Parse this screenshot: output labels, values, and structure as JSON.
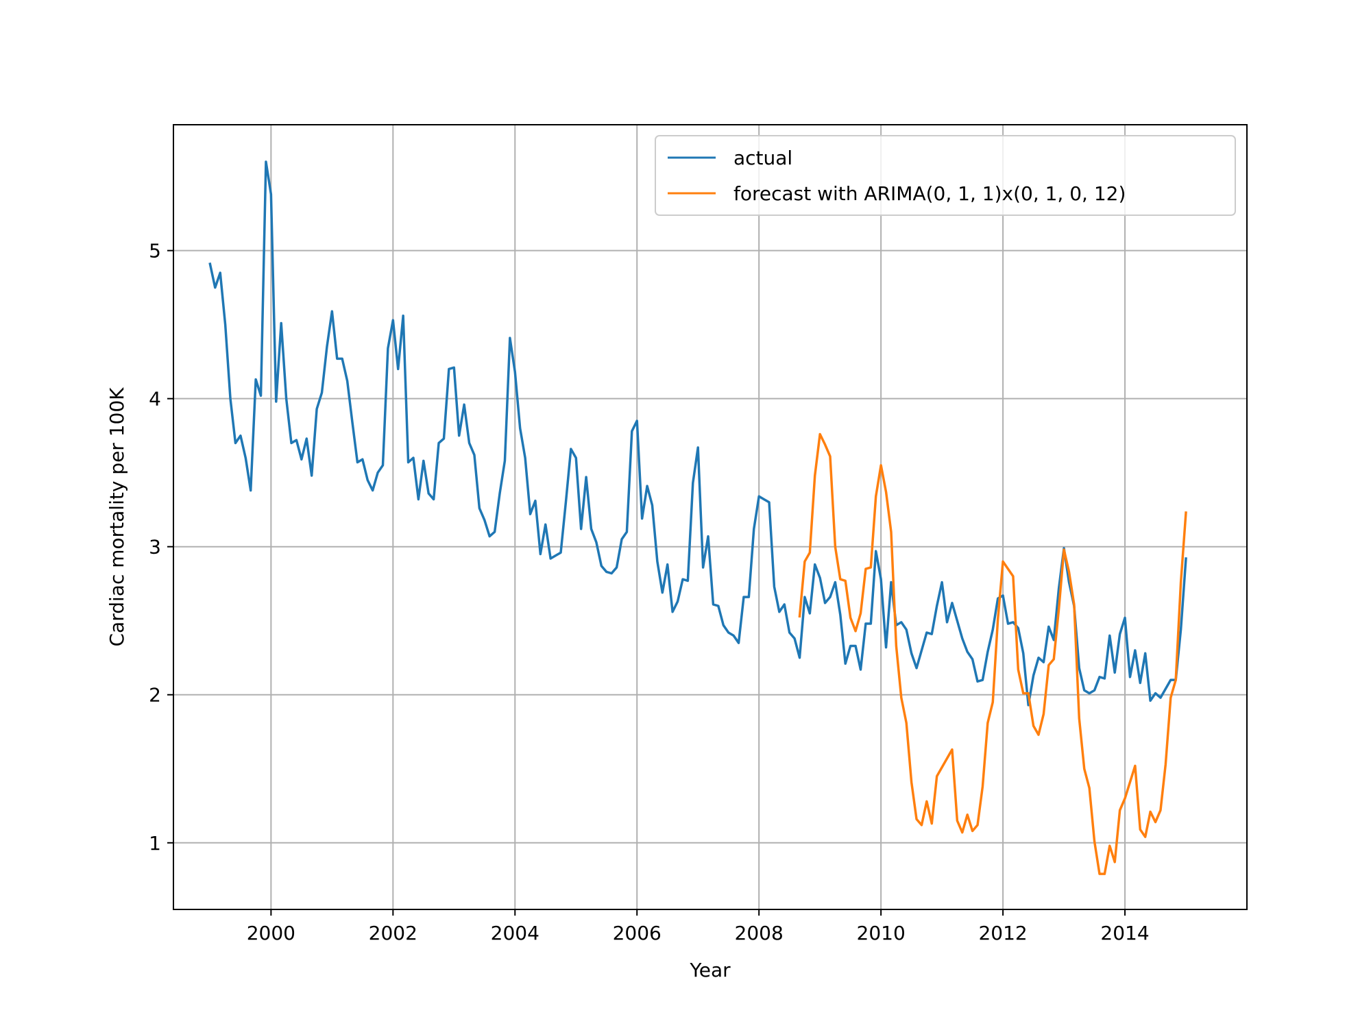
{
  "chart_data": {
    "type": "line",
    "xlabel": "Year",
    "ylabel": "Cardiac mortality per 100K",
    "xlim": [
      1998.4,
      2016.0
    ],
    "ylim": [
      0.55,
      5.85
    ],
    "x_ticks": [
      2000,
      2002,
      2004,
      2006,
      2008,
      2010,
      2012,
      2014
    ],
    "y_ticks": [
      1,
      2,
      3,
      4,
      5
    ],
    "grid": true,
    "legend_position": "top-right",
    "series": [
      {
        "name": "actual",
        "color": "#1f77b4",
        "start": [
          1999,
          1
        ],
        "values": [
          4.91,
          4.75,
          4.85,
          4.5,
          4.0,
          3.7,
          3.75,
          3.6,
          3.38,
          4.13,
          4.02,
          5.6,
          5.38,
          3.98,
          4.51,
          4.0,
          3.7,
          3.72,
          3.59,
          3.73,
          3.48,
          3.93,
          4.04,
          4.35,
          4.59,
          4.27,
          4.27,
          4.12,
          3.84,
          3.57,
          3.59,
          3.45,
          3.38,
          3.5,
          3.55,
          4.34,
          4.53,
          4.2,
          4.56,
          3.57,
          3.6,
          3.32,
          3.58,
          3.36,
          3.32,
          3.7,
          3.73,
          4.2,
          4.21,
          3.75,
          3.96,
          3.7,
          3.62,
          3.26,
          3.18,
          3.07,
          3.1,
          3.36,
          3.58,
          4.41,
          4.18,
          3.8,
          3.6,
          3.22,
          3.31,
          2.95,
          3.15,
          2.92,
          2.94,
          2.96,
          3.3,
          3.66,
          3.6,
          3.12,
          3.47,
          3.12,
          3.03,
          2.87,
          2.83,
          2.82,
          2.86,
          3.05,
          3.1,
          3.78,
          3.85,
          3.19,
          3.41,
          3.28,
          2.9,
          2.69,
          2.88,
          2.56,
          2.63,
          2.78,
          2.77,
          3.43,
          3.67,
          2.86,
          3.07,
          2.61,
          2.6,
          2.47,
          2.42,
          2.4,
          2.35,
          2.66,
          2.66,
          3.12,
          3.34,
          3.32,
          3.3,
          2.73,
          2.56,
          2.61,
          2.42,
          2.38,
          2.25,
          2.66,
          2.55,
          2.88,
          2.79,
          2.62,
          2.66,
          2.76,
          2.54,
          2.21,
          2.33,
          2.33,
          2.17,
          2.48,
          2.48,
          2.97,
          2.78,
          2.32,
          2.76,
          2.47,
          2.49,
          2.44,
          2.28,
          2.18,
          2.3,
          2.42,
          2.41,
          2.6,
          2.76,
          2.49,
          2.62,
          2.5,
          2.38,
          2.29,
          2.24,
          2.09,
          2.1,
          2.29,
          2.44,
          2.65,
          2.67,
          2.48,
          2.49,
          2.45,
          2.28,
          1.93,
          2.13,
          2.25,
          2.22,
          2.46,
          2.37,
          2.72,
          2.99,
          2.76,
          2.6,
          2.18,
          2.03,
          2.01,
          2.03,
          2.12,
          2.11,
          2.4,
          2.15,
          2.41,
          2.52,
          2.12,
          2.3,
          2.08,
          2.28,
          1.96,
          2.01,
          1.98,
          2.04,
          2.1,
          2.1,
          2.44,
          2.92
        ]
      },
      {
        "name": "forecast with ARIMA(0, 1, 1)x(0, 1, 0, 12)",
        "color": "#ff7f0e",
        "start": [
          2008,
          9
        ],
        "values": [
          2.53,
          2.9,
          2.96,
          3.48,
          3.76,
          3.69,
          3.61,
          3.0,
          2.78,
          2.77,
          2.52,
          2.43,
          2.55,
          2.85,
          2.86,
          3.34,
          3.55,
          3.37,
          3.1,
          2.33,
          1.98,
          1.81,
          1.41,
          1.16,
          1.12,
          1.28,
          1.13,
          1.45,
          1.51,
          1.57,
          1.63,
          1.15,
          1.07,
          1.19,
          1.08,
          1.12,
          1.38,
          1.81,
          1.95,
          2.51,
          2.9,
          2.85,
          2.8,
          2.17,
          2.01,
          2.01,
          1.79,
          1.73,
          1.87,
          2.2,
          2.24,
          2.58,
          2.98,
          2.83,
          2.61,
          1.84,
          1.5,
          1.37,
          1.01,
          0.79,
          0.79,
          0.98,
          0.87,
          1.22,
          1.3,
          1.41,
          1.52,
          1.09,
          1.04,
          1.21,
          1.14,
          1.22,
          1.53,
          1.98,
          2.1,
          2.76,
          3.23
        ]
      }
    ]
  }
}
